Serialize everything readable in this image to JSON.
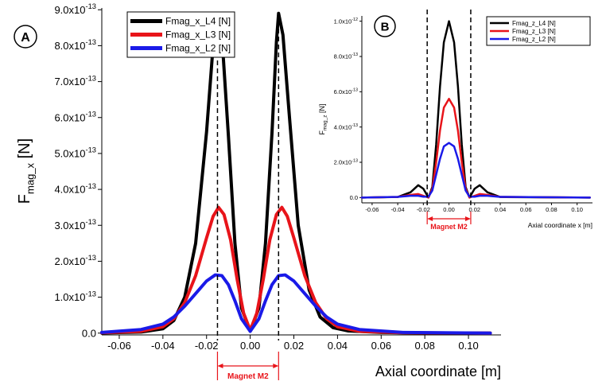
{
  "chart_data": [
    {
      "panel": "A",
      "type": "line",
      "title": "",
      "xlabel": "Axial coordinate [m]",
      "ylabel": "F",
      "ylabel_sub": "mag_x",
      "ylabel_unit": "[N]",
      "xlim": [
        -0.068,
        0.112
      ],
      "ylim": [
        -5e-15,
        9.05e-13
      ],
      "x_ticks": [
        -0.06,
        -0.04,
        -0.02,
        0.0,
        0.02,
        0.04,
        0.06,
        0.08,
        0.1
      ],
      "x_tick_labels": [
        "-0.06",
        "-0.04",
        "-0.02",
        "0.00",
        "0.02",
        "0.04",
        "0.06",
        "0.08",
        "0.10"
      ],
      "y_ticks": [
        0,
        1e-13,
        2e-13,
        3e-13,
        4e-13,
        5e-13,
        6e-13,
        7e-13,
        8e-13,
        9e-13
      ],
      "y_tick_labels": [
        {
          "mant": "0.0",
          "exp": ""
        },
        {
          "mant": "1.0x10",
          "exp": "-13"
        },
        {
          "mant": "2.0x10",
          "exp": "-13"
        },
        {
          "mant": "3.0x10",
          "exp": "-13"
        },
        {
          "mant": "4.0x10",
          "exp": "-13"
        },
        {
          "mant": "5.0x10",
          "exp": "-13"
        },
        {
          "mant": "6.0x10",
          "exp": "-13"
        },
        {
          "mant": "7.0x10",
          "exp": "-13"
        },
        {
          "mant": "8.0x10",
          "exp": "-13"
        },
        {
          "mant": "9.0x10",
          "exp": "-13"
        }
      ],
      "grid": false,
      "legend_position": "top-left",
      "magnet_edges": [
        -0.015,
        0.013
      ],
      "magnet_label": "Magnet M2",
      "series": [
        {
          "name": "Fmag_x_L4 [N]",
          "color": "#000000",
          "points": [
            [
              -0.068,
              5e-16
            ],
            [
              -0.05,
              3e-15
            ],
            [
              -0.04,
              1.2e-14
            ],
            [
              -0.035,
              3.5e-14
            ],
            [
              -0.03,
              1e-13
            ],
            [
              -0.025,
              2.5e-13
            ],
            [
              -0.02,
              5.6e-13
            ],
            [
              -0.017,
              8e-13
            ],
            [
              -0.015,
              8.9e-13
            ],
            [
              -0.013,
              8.3e-13
            ],
            [
              -0.01,
              5.5e-13
            ],
            [
              -0.007,
              2.5e-13
            ],
            [
              -0.004,
              7e-14
            ],
            [
              0.0,
              5e-15
            ],
            [
              0.004,
              7e-14
            ],
            [
              0.007,
              2.5e-13
            ],
            [
              0.01,
              5.6e-13
            ],
            [
              0.012,
              8.1e-13
            ],
            [
              0.013,
              8.9e-13
            ],
            [
              0.015,
              8.3e-13
            ],
            [
              0.018,
              6e-13
            ],
            [
              0.022,
              3e-13
            ],
            [
              0.027,
              1.2e-13
            ],
            [
              0.032,
              4.5e-14
            ],
            [
              0.038,
              1.5e-14
            ],
            [
              0.045,
              6e-15
            ],
            [
              0.06,
              2e-15
            ],
            [
              0.08,
              5e-16
            ],
            [
              0.11,
              0.0
            ]
          ]
        },
        {
          "name": "Fmag_x_L3 [N]",
          "color": "#e8141a",
          "points": [
            [
              -0.068,
              1e-15
            ],
            [
              -0.05,
              5e-15
            ],
            [
              -0.04,
              1.8e-14
            ],
            [
              -0.035,
              4e-14
            ],
            [
              -0.03,
              8.5e-14
            ],
            [
              -0.025,
              1.6e-13
            ],
            [
              -0.02,
              2.65e-13
            ],
            [
              -0.017,
              3.25e-13
            ],
            [
              -0.0145,
              3.5e-13
            ],
            [
              -0.012,
              3.3e-13
            ],
            [
              -0.009,
              2.6e-13
            ],
            [
              -0.006,
              1.5e-13
            ],
            [
              -0.003,
              5.5e-14
            ],
            [
              0.0,
              8e-15
            ],
            [
              0.003,
              5.5e-14
            ],
            [
              0.006,
              1.5e-13
            ],
            [
              0.009,
              2.6e-13
            ],
            [
              0.012,
              3.3e-13
            ],
            [
              0.0145,
              3.5e-13
            ],
            [
              0.017,
              3.25e-13
            ],
            [
              0.02,
              2.65e-13
            ],
            [
              0.025,
              1.6e-13
            ],
            [
              0.03,
              8.5e-14
            ],
            [
              0.035,
              4e-14
            ],
            [
              0.04,
              1.8e-14
            ],
            [
              0.05,
              5e-15
            ],
            [
              0.07,
              1e-15
            ],
            [
              0.11,
              0.0
            ]
          ]
        },
        {
          "name": "Fmag_x_L2 [N]",
          "color": "#1a1ae8",
          "points": [
            [
              -0.068,
              2e-15
            ],
            [
              -0.05,
              1e-14
            ],
            [
              -0.04,
              2.5e-14
            ],
            [
              -0.035,
              4.5e-14
            ],
            [
              -0.03,
              7.5e-14
            ],
            [
              -0.025,
              1.1e-13
            ],
            [
              -0.02,
              1.45e-13
            ],
            [
              -0.016,
              1.62e-13
            ],
            [
              -0.013,
              1.6e-13
            ],
            [
              -0.01,
              1.35e-13
            ],
            [
              -0.007,
              9e-14
            ],
            [
              -0.004,
              4e-14
            ],
            [
              0.0,
              5e-15
            ],
            [
              0.004,
              4e-14
            ],
            [
              0.007,
              9e-14
            ],
            [
              0.01,
              1.35e-13
            ],
            [
              0.013,
              1.6e-13
            ],
            [
              0.016,
              1.62e-13
            ],
            [
              0.02,
              1.45e-13
            ],
            [
              0.025,
              1.1e-13
            ],
            [
              0.03,
              7.5e-14
            ],
            [
              0.035,
              4.5e-14
            ],
            [
              0.04,
              2.5e-14
            ],
            [
              0.05,
              1e-14
            ],
            [
              0.07,
              2e-15
            ],
            [
              0.11,
              0.0
            ]
          ]
        }
      ]
    },
    {
      "panel": "B",
      "type": "line",
      "title": "",
      "xlabel": "Axial coordinate x [m]",
      "ylabel": "F",
      "ylabel_sub": "mag_z",
      "ylabel_unit": "[N]",
      "xlim": [
        -0.068,
        0.112
      ],
      "ylim": [
        -3e-14,
        1.03e-12
      ],
      "x_ticks": [
        -0.06,
        -0.04,
        -0.02,
        0.0,
        0.02,
        0.04,
        0.06,
        0.08,
        0.1
      ],
      "x_tick_labels": [
        "-0.06",
        "-0.04",
        "-0.02",
        "0.00",
        "0.02",
        "0.04",
        "0.06",
        "0.08",
        "0.10"
      ],
      "y_ticks": [
        0,
        2e-13,
        4e-13,
        6e-13,
        8e-13,
        1e-12
      ],
      "y_tick_labels": [
        {
          "mant": "0.0",
          "exp": ""
        },
        {
          "mant": "2.0x10",
          "exp": "-13"
        },
        {
          "mant": "4.0x10",
          "exp": "-13"
        },
        {
          "mant": "6.0x10",
          "exp": "-13"
        },
        {
          "mant": "8.0x10",
          "exp": "-13"
        },
        {
          "mant": "1.0x10",
          "exp": "-12"
        }
      ],
      "grid": false,
      "legend_position": "top-right",
      "magnet_edges": [
        -0.017,
        0.017
      ],
      "magnet_label": "Magnet M2",
      "series": [
        {
          "name": "Fmag_z_L4 [N]",
          "color": "#000000",
          "points": [
            [
              -0.068,
              0.0
            ],
            [
              -0.04,
              3e-15
            ],
            [
              -0.03,
              3e-14
            ],
            [
              -0.024,
              7e-14
            ],
            [
              -0.02,
              5e-14
            ],
            [
              -0.016,
              0.0
            ],
            [
              -0.013,
              6e-14
            ],
            [
              -0.01,
              3e-13
            ],
            [
              -0.007,
              6.3e-13
            ],
            [
              -0.004,
              8.8e-13
            ],
            [
              0.0,
              1e-12
            ],
            [
              0.004,
              8.8e-13
            ],
            [
              0.007,
              6.3e-13
            ],
            [
              0.01,
              3e-13
            ],
            [
              0.013,
              6e-14
            ],
            [
              0.016,
              0.0
            ],
            [
              0.02,
              5e-14
            ],
            [
              0.024,
              7e-14
            ],
            [
              0.03,
              3e-14
            ],
            [
              0.04,
              3e-15
            ],
            [
              0.11,
              0.0
            ]
          ]
        },
        {
          "name": "Fmag_z_L3 [N]",
          "color": "#e8141a",
          "points": [
            [
              -0.068,
              0.0
            ],
            [
              -0.04,
              4e-15
            ],
            [
              -0.03,
              1.5e-14
            ],
            [
              -0.024,
              2e-14
            ],
            [
              -0.02,
              1e-14
            ],
            [
              -0.016,
              0.0
            ],
            [
              -0.013,
              5e-14
            ],
            [
              -0.01,
              2e-13
            ],
            [
              -0.007,
              3.8e-13
            ],
            [
              -0.004,
              5.1e-13
            ],
            [
              0.0,
              5.6e-13
            ],
            [
              0.004,
              5.1e-13
            ],
            [
              0.007,
              3.8e-13
            ],
            [
              0.01,
              2e-13
            ],
            [
              0.013,
              5e-14
            ],
            [
              0.016,
              0.0
            ],
            [
              0.02,
              1e-14
            ],
            [
              0.024,
              2e-14
            ],
            [
              0.03,
              1.5e-14
            ],
            [
              0.04,
              4e-15
            ],
            [
              0.11,
              0.0
            ]
          ]
        },
        {
          "name": "Fmag_z_L2 [N]",
          "color": "#1a1ae8",
          "points": [
            [
              -0.068,
              0.0
            ],
            [
              -0.04,
              4e-15
            ],
            [
              -0.03,
              1e-14
            ],
            [
              -0.024,
              1e-14
            ],
            [
              -0.02,
              5e-15
            ],
            [
              -0.016,
              5e-15
            ],
            [
              -0.013,
              4e-14
            ],
            [
              -0.01,
              1.3e-13
            ],
            [
              -0.007,
              2.2e-13
            ],
            [
              -0.004,
              2.9e-13
            ],
            [
              0.0,
              3.1e-13
            ],
            [
              0.004,
              2.9e-13
            ],
            [
              0.007,
              2.2e-13
            ],
            [
              0.01,
              1.3e-13
            ],
            [
              0.013,
              4e-14
            ],
            [
              0.016,
              5e-15
            ],
            [
              0.02,
              5e-15
            ],
            [
              0.024,
              1e-14
            ],
            [
              0.03,
              1e-14
            ],
            [
              0.04,
              4e-15
            ],
            [
              0.11,
              0.0
            ]
          ]
        }
      ]
    }
  ]
}
